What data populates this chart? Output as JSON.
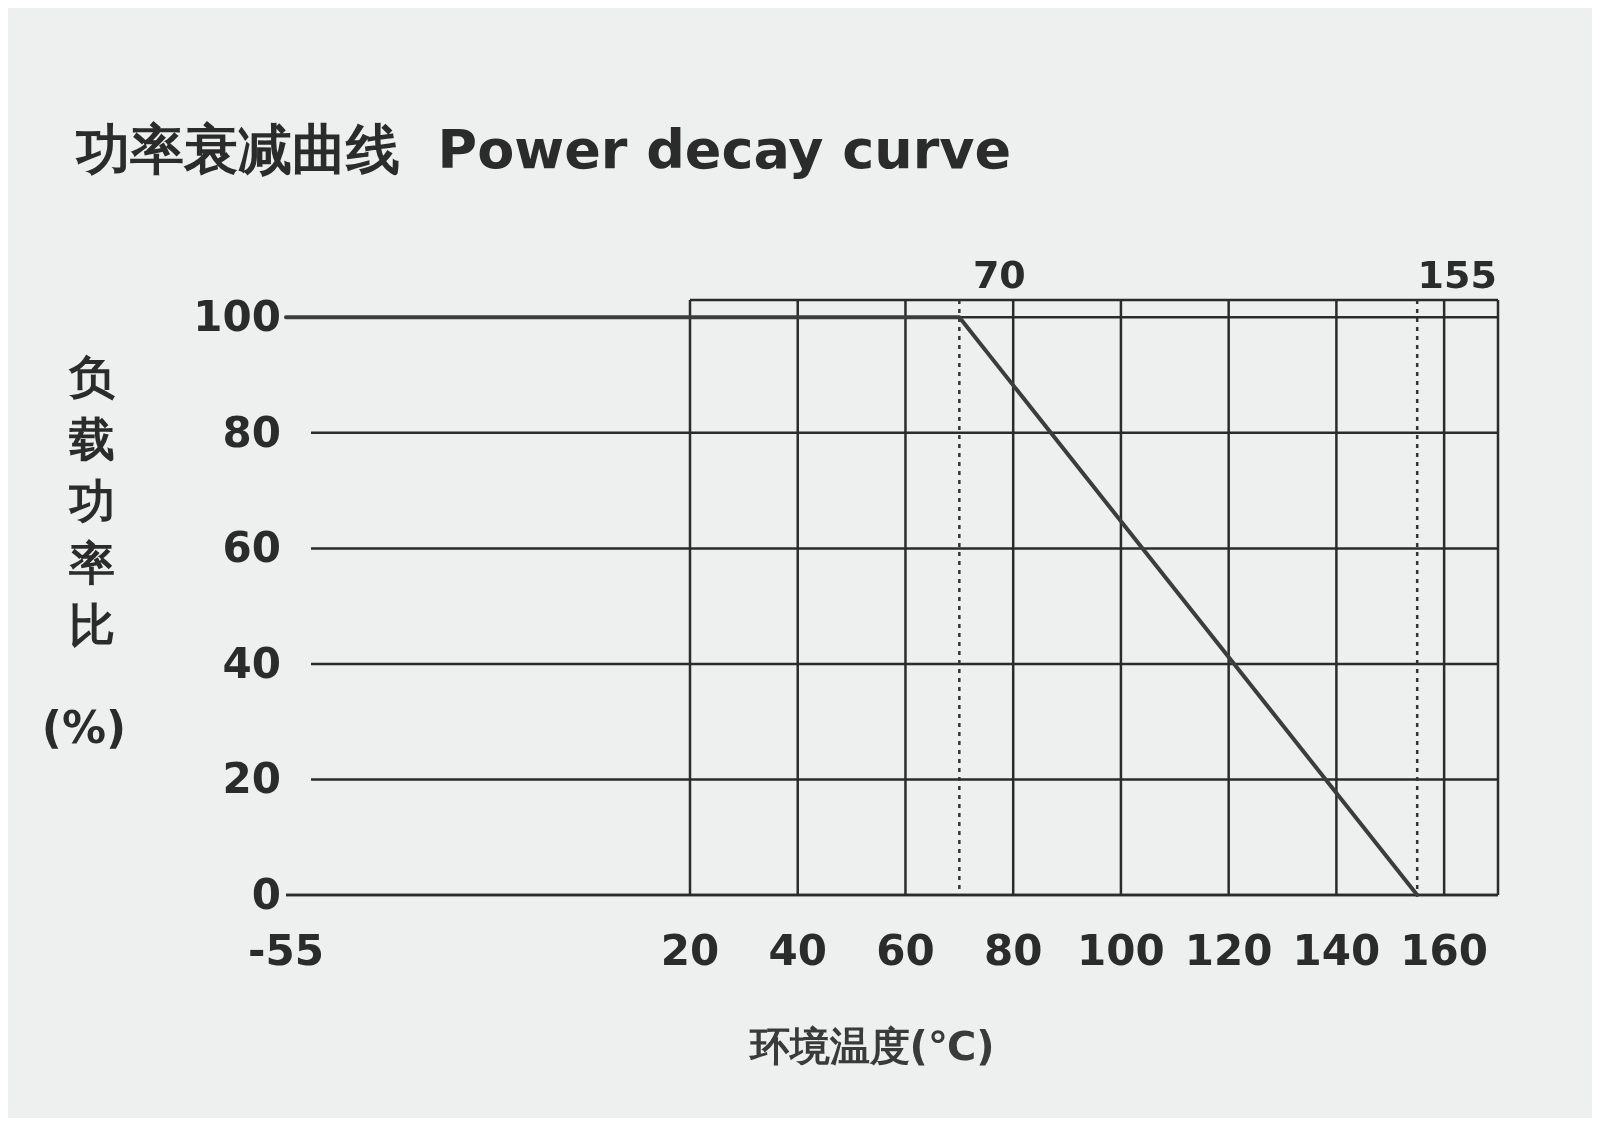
{
  "chart_data": {
    "type": "line",
    "title": "功率衰减曲线  Power decay curve",
    "xlabel": "环境温度(℃)",
    "ylabel": "负载功率比(%)",
    "x": [
      -55,
      70,
      155
    ],
    "series": [
      {
        "color": "#3c3c3c",
        "values": [
          100,
          100,
          0
        ]
      }
    ],
    "xlim": [
      -55,
      170
    ],
    "xticks": [
      -55,
      20,
      40,
      60,
      80,
      100,
      120,
      140,
      160
    ],
    "ylim": [
      0,
      103
    ],
    "yticks": [
      0,
      20,
      40,
      60,
      80,
      100
    ],
    "grid": true,
    "marker": "none",
    "line_style": "solid",
    "ref_lines": [
      {
        "axis": "x",
        "value": 70,
        "label": "70",
        "line_style": "dotted",
        "color": "#333333"
      },
      {
        "axis": "x",
        "value": 155,
        "label": "155",
        "line_style": "dotted",
        "color": "#333333"
      }
    ]
  }
}
